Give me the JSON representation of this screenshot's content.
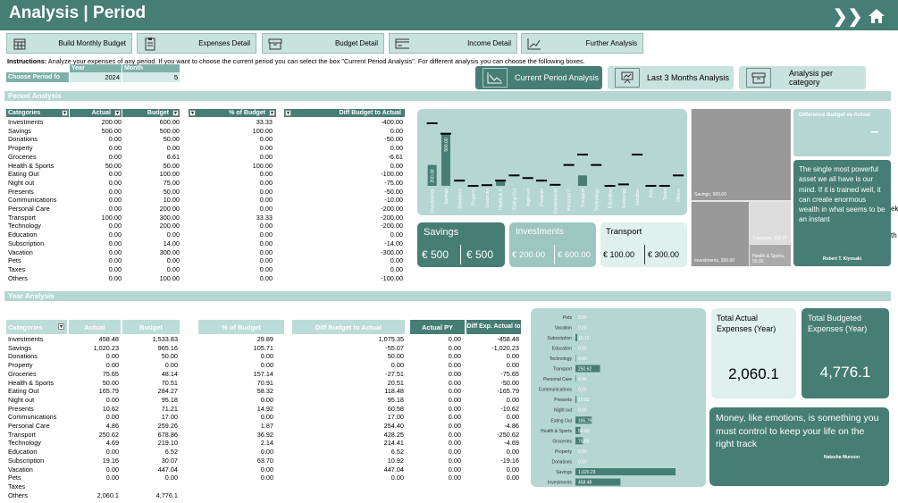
{
  "header": {
    "title": "Analysis | Period"
  },
  "nav": [
    {
      "label": "Build Monthly Budget",
      "icon": "calendar-icon"
    },
    {
      "label": "Expenses Detail",
      "icon": "clipboard-icon"
    },
    {
      "label": "Budget Detail",
      "icon": "box-icon"
    },
    {
      "label": "Income Detail",
      "icon": "wallet-icon"
    },
    {
      "label": "Further Analysis",
      "icon": "line-chart-icon"
    }
  ],
  "instructions": {
    "bold": "Instructions:",
    "text": " Analyze your expenses of any period. If you want to choose the current period you can select the box \"Current Period Analysis\". For different analysis you can choose the following boxes."
  },
  "period_selector": {
    "label": "Choose Period fo",
    "year_header": "Year",
    "month_header": "Month",
    "year": "2024",
    "month": "5"
  },
  "analysis_buttons": [
    "Current Period Analysis",
    "Last 3 Months Analysis",
    "Analysis per category"
  ],
  "period_section": {
    "title": "Period Analysis",
    "headers": [
      "Categories",
      "Actual",
      "Budget",
      "% of Budget",
      "Diff Budget to Actual"
    ],
    "rows": [
      [
        "Investments",
        "200.00",
        "600.00",
        "33.33",
        "-400.00"
      ],
      [
        "Savings",
        "500.00",
        "500.00",
        "100.00",
        "0.00"
      ],
      [
        "Donations",
        "0.00",
        "50.00",
        "0.00",
        "-50.00"
      ],
      [
        "Property",
        "0.00",
        "0.00",
        "0.00",
        "0.00"
      ],
      [
        "Groceries",
        "0.00",
        "6.61",
        "0.00",
        "-6.61"
      ],
      [
        "Health & Sports",
        "50.00",
        "50.00",
        "100.00",
        "0.00"
      ],
      [
        "Eating Out",
        "0.00",
        "100.00",
        "0.00",
        "-100.00"
      ],
      [
        "Night out",
        "0.00",
        "75.00",
        "0.00",
        "-75.00"
      ],
      [
        "Presents",
        "0.00",
        "50.00",
        "0.00",
        "-50.00"
      ],
      [
        "Communications",
        "0.00",
        "10.00",
        "0.00",
        "-10.00"
      ],
      [
        "Personal Care",
        "0.00",
        "200.00",
        "0.00",
        "-200.00"
      ],
      [
        "Transport",
        "100.00",
        "300.00",
        "33.33",
        "-200.00"
      ],
      [
        "Technology",
        "0.00",
        "200.00",
        "0.00",
        "-200.00"
      ],
      [
        "Education",
        "0.00",
        "0.00",
        "0.00",
        "0.00"
      ],
      [
        "Subscription",
        "0.00",
        "14.00",
        "0.00",
        "-14.00"
      ],
      [
        "Vacation",
        "0.00",
        "300.00",
        "0.00",
        "-300.00"
      ],
      [
        "Pets",
        "0.00",
        "0.00",
        "0.00",
        "0.00"
      ],
      [
        "Taxes",
        "0.00",
        "0.00",
        "0.00",
        "0.00"
      ],
      [
        "Others",
        "0.00",
        "100.00",
        "0.00",
        "-100.00"
      ]
    ]
  },
  "chart_data": [
    {
      "type": "bar",
      "categories": [
        "Investments",
        "Savings",
        "Donations",
        "Property",
        "Groceries",
        "Health & Sports",
        "Eating Out",
        "Night out",
        "Presents",
        "Communications",
        "Personal Care",
        "Transport",
        "Technology",
        "Education",
        "Subscription",
        "Vacation",
        "Pets",
        "Taxes",
        "Others"
      ],
      "series": [
        {
          "name": "Actual",
          "values": [
            200,
            500,
            0,
            0,
            0,
            50,
            0,
            0,
            0,
            0,
            0,
            100,
            0,
            0,
            0,
            0,
            0,
            0,
            0
          ]
        },
        {
          "name": "Budget",
          "values": [
            600,
            500,
            50,
            0,
            6.61,
            50,
            100,
            75,
            50,
            10,
            200,
            300,
            200,
            0,
            14,
            300,
            0,
            0,
            100
          ]
        }
      ],
      "data_labels": [
        "200.00",
        "500.00"
      ]
    },
    {
      "type": "bar",
      "orientation": "horizontal",
      "categories": [
        "Pets",
        "Vacation",
        "Subscription",
        "Education",
        "Technology",
        "Transport",
        "Personal Care",
        "Communications",
        "Presents",
        "Night out",
        "Eating Out",
        "Health & Sports",
        "Groceries",
        "Property",
        "Donations",
        "Savings",
        "Investments"
      ],
      "values": [
        0,
        0,
        19.16,
        0,
        4.69,
        250.62,
        4.86,
        0,
        10.62,
        0,
        165.79,
        50,
        75.65,
        0,
        0,
        1020.23,
        458.48
      ],
      "labels": [
        "0.00",
        "0.00",
        "19.16",
        "0.00",
        "4.69",
        "250.62",
        "4.86",
        "0.00",
        "10.62",
        "0.00",
        "165.79",
        "50.00",
        "75.65",
        "0.00",
        "0.00",
        "1,020.23",
        "458.48"
      ]
    }
  ],
  "kpis": [
    {
      "title": "Savings",
      "actual": "€ 500",
      "budget": "€ 500"
    },
    {
      "title": "Investments",
      "actual": "€ 200.00",
      "budget": "€ 600.00"
    },
    {
      "title": "Transport",
      "actual": "€ 100.00",
      "budget": "€ 300.00"
    }
  ],
  "treemap": {
    "savings": "Savings, 500.00",
    "investments": "Investments, 200.00",
    "transport": "Transport, 100.00",
    "health": "Health & Sports, 50.00"
  },
  "diff_panel": {
    "title": "Difference Budget vs Actual",
    "value": "–"
  },
  "quote1": {
    "text": "The single most powerful asset we all have is our mind. If it is trained well, it can create enormous wealth in what seems to be an instant",
    "author": "Robert T. Kiyosaki"
  },
  "clipped_text": {
    "a": "ek",
    "b": "th"
  },
  "year_section": {
    "title": "Year Analysis",
    "headers": [
      "Categories",
      "Actual",
      "Budget",
      "% of Budget",
      "Diff Budget to Actual",
      "Actual PY",
      "Diff Exp. Actual to"
    ],
    "rows": [
      [
        "Investments",
        "458.48",
        "1,533.83",
        "29.89",
        "1,075.35",
        "0.00",
        "-458.48"
      ],
      [
        "Savings",
        "1,020.23",
        "965.16",
        "105.71",
        "-55.07",
        "0.00",
        "-1,020.23"
      ],
      [
        "Donations",
        "0.00",
        "50.00",
        "0.00",
        "50.00",
        "0.00",
        "0.00"
      ],
      [
        "Property",
        "0.00",
        "0.00",
        "0.00",
        "0.00",
        "0.00",
        "0.00"
      ],
      [
        "Groceries",
        "75.65",
        "48.14",
        "157.14",
        "-27.51",
        "0.00",
        "-75.65"
      ],
      [
        "Health & Sports",
        "50.00",
        "70.51",
        "70.91",
        "20.51",
        "0.00",
        "-50.00"
      ],
      [
        "Eating Out",
        "165.79",
        "284.27",
        "58.32",
        "118.48",
        "0.00",
        "-165.79"
      ],
      [
        "Night out",
        "0.00",
        "95.18",
        "0.00",
        "95.18",
        "0.00",
        "0.00"
      ],
      [
        "Presents",
        "10.62",
        "71.21",
        "14.92",
        "60.58",
        "0.00",
        "-10.62"
      ],
      [
        "Communications",
        "0.00",
        "17.00",
        "0.00",
        "17.00",
        "0.00",
        "0.00"
      ],
      [
        "Personal Care",
        "4.86",
        "259.26",
        "1.87",
        "254.40",
        "0.00",
        "-4.86"
      ],
      [
        "Transport",
        "250.62",
        "678.86",
        "36.92",
        "428.25",
        "0.00",
        "-250.62"
      ],
      [
        "Technology",
        "4.69",
        "219.10",
        "2.14",
        "214.41",
        "0.00",
        "-4.69"
      ],
      [
        "Education",
        "0.00",
        "6.52",
        "0.00",
        "6.52",
        "0.00",
        "0.00"
      ],
      [
        "Subscription",
        "19.16",
        "30.07",
        "63.70",
        "10.92",
        "0.00",
        "-19.16"
      ],
      [
        "Vacation",
        "0.00",
        "447.04",
        "0.00",
        "447.04",
        "0.00",
        "0.00"
      ],
      [
        "Pets",
        "0.00",
        "0.00",
        "0.00",
        "0.00",
        "0.00",
        "0.00"
      ],
      [
        "Taxes",
        "",
        "",
        "",
        "",
        "",
        ""
      ],
      [
        "Others",
        "2,060.1",
        "4,776.1",
        "",
        "",
        "",
        ""
      ]
    ]
  },
  "totals": [
    {
      "title": "Total Actual Expenses (Year)",
      "value": "2,060.1"
    },
    {
      "title": "Total Budgeted Expenses (Year)",
      "value": "4,776.1"
    }
  ],
  "quote2": {
    "text": "Money, like emotions, is something you must control to keep your life on the right track",
    "author": "Natasha Munson"
  },
  "colors": {
    "primary": "#467d74",
    "light": "#c8e2de",
    "pale": "#dff0ed",
    "section": "#b5d6d1"
  }
}
